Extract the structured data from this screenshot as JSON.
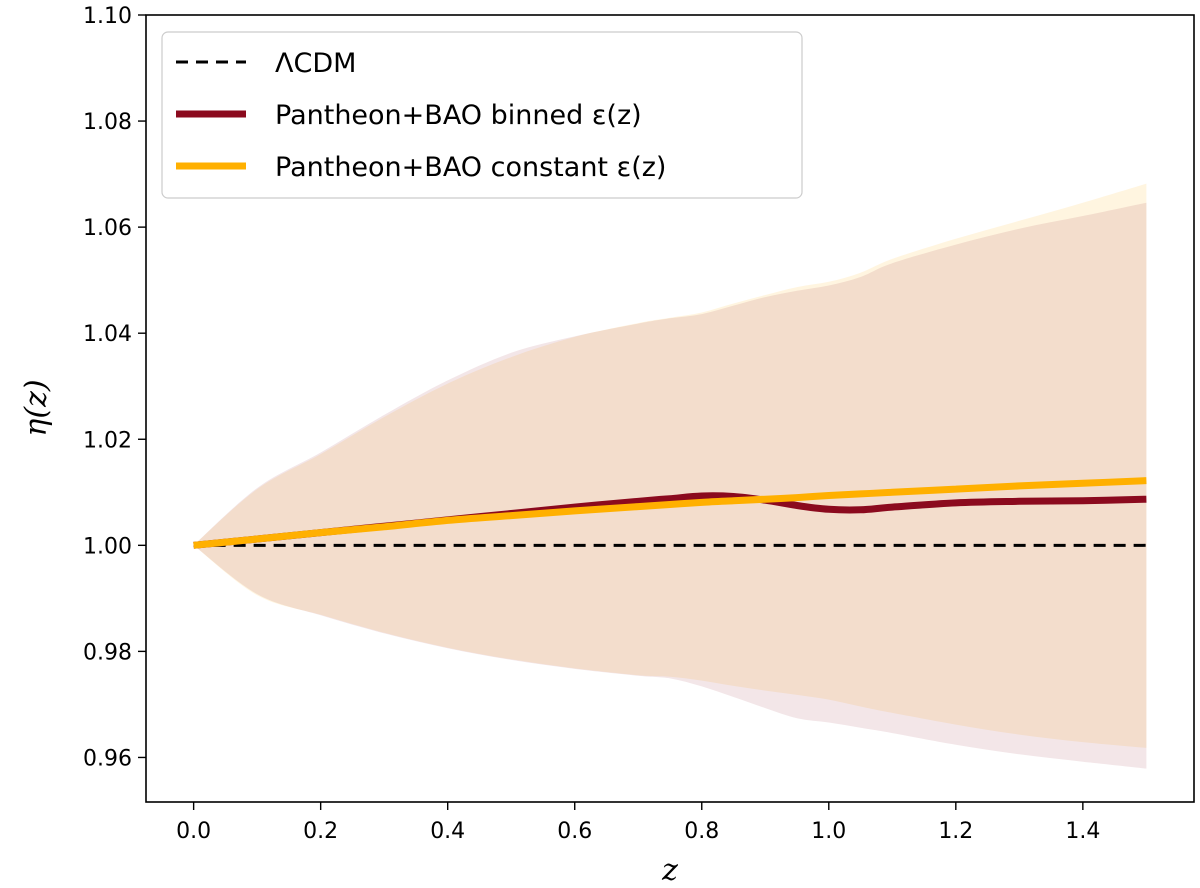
{
  "chart_data": {
    "type": "line",
    "title": "",
    "xlabel": "z",
    "ylabel": "η(z)",
    "xlim": [
      -0.075,
      1.575
    ],
    "ylim": [
      0.9516,
      1.1
    ],
    "xticks": [
      "0.0",
      "0.2",
      "0.4",
      "0.6",
      "0.8",
      "1.0",
      "1.2",
      "1.4"
    ],
    "yticks": [
      "0.96",
      "0.98",
      "1.00",
      "1.02",
      "1.04",
      "1.06",
      "1.08",
      "1.10"
    ],
    "grid": false,
    "legend_position": "top-left",
    "series": [
      {
        "name": "ΛCDM",
        "style": "dashed",
        "color": "#000000",
        "x": [
          0.0,
          1.5
        ],
        "y": [
          1.0,
          1.0
        ]
      },
      {
        "name": "Pantheon+BAO binned ε(z)",
        "style": "solid",
        "color": "#8b0a1e",
        "x": [
          0.0,
          0.1,
          0.2,
          0.3,
          0.4,
          0.5,
          0.6,
          0.7,
          0.75,
          0.8,
          0.85,
          0.9,
          0.95,
          1.0,
          1.05,
          1.1,
          1.2,
          1.3,
          1.4,
          1.5
        ],
        "y": [
          1.0,
          1.0012,
          1.0024,
          1.0036,
          1.0048,
          1.006,
          1.0072,
          1.0083,
          1.0088,
          1.0093,
          1.0092,
          1.0085,
          1.0075,
          1.0068,
          1.0067,
          1.0072,
          1.008,
          1.0083,
          1.0084,
          1.0087
        ],
        "band_upper": [
          1.0,
          1.0108,
          1.0175,
          1.0246,
          1.0311,
          1.0363,
          1.0394,
          1.0418,
          1.0428,
          1.0436,
          1.0452,
          1.0468,
          1.048,
          1.049,
          1.0506,
          1.0532,
          1.0567,
          1.0597,
          1.0621,
          1.0646
        ],
        "band_lower": [
          1.0,
          0.9908,
          0.9868,
          0.9834,
          0.9806,
          0.9784,
          0.9767,
          0.9754,
          0.9749,
          0.9734,
          0.9714,
          0.9693,
          0.9674,
          0.9666,
          0.9656,
          0.9646,
          0.9624,
          0.9606,
          0.9592,
          0.9579
        ]
      },
      {
        "name": "Pantheon+BAO constant ε(z)",
        "style": "solid",
        "color": "#ffb000",
        "x": [
          0.0,
          0.1,
          0.2,
          0.3,
          0.4,
          0.5,
          0.6,
          0.7,
          0.75,
          0.8,
          0.85,
          0.9,
          0.95,
          1.0,
          1.05,
          1.1,
          1.2,
          1.3,
          1.4,
          1.5
        ],
        "y": [
          1.0,
          1.0012,
          1.0024,
          1.0035,
          1.0047,
          1.0056,
          1.0065,
          1.0073,
          1.0077,
          1.0081,
          1.0084,
          1.0087,
          1.009,
          1.0094,
          1.0097,
          1.01,
          1.0106,
          1.0112,
          1.0117,
          1.0122
        ],
        "band_upper": [
          1.0,
          1.0106,
          1.0172,
          1.0242,
          1.0305,
          1.0355,
          1.0393,
          1.0419,
          1.0429,
          1.0439,
          1.0456,
          1.0472,
          1.0487,
          1.0497,
          1.0514,
          1.054,
          1.0578,
          1.0612,
          1.0646,
          1.0682
        ],
        "band_lower": [
          1.0,
          0.9906,
          0.9869,
          0.9835,
          0.9807,
          0.9785,
          0.9768,
          0.9755,
          0.9752,
          0.9745,
          0.9735,
          0.9726,
          0.9718,
          0.9709,
          0.9696,
          0.9684,
          0.9662,
          0.9643,
          0.9629,
          0.9618
        ]
      }
    ]
  }
}
